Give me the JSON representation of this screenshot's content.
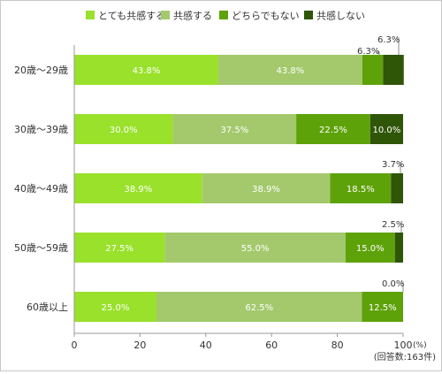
{
  "chart_data": {
    "type": "bar",
    "orientation": "horizontal",
    "stacked": true,
    "title": "",
    "xlabel": "",
    "ylabel": "",
    "x_unit": "(%)",
    "note": "(回答数:163件)",
    "xlim": [
      0,
      100
    ],
    "xticks": [
      0,
      20,
      40,
      60,
      80,
      100
    ],
    "grid": false,
    "legend_position": "top",
    "categories": [
      "20歳〜29歳",
      "30歳〜39歳",
      "40歳〜49歳",
      "50歳〜59歳",
      "60歳以上"
    ],
    "series": [
      {
        "name": "とても共感する",
        "color": "#99e12b",
        "values": [
          43.8,
          30.0,
          38.9,
          27.5,
          25.0
        ],
        "labels": [
          "43.8%",
          "30.0%",
          "38.9%",
          "27.5%",
          "25.0%"
        ]
      },
      {
        "name": "共感する",
        "color": "#a3c96c",
        "values": [
          43.8,
          37.5,
          38.9,
          55.0,
          62.5
        ],
        "labels": [
          "43.8%",
          "37.5%",
          "38.9%",
          "55.0%",
          "62.5%"
        ]
      },
      {
        "name": "どちらでもない",
        "color": "#5ea20a",
        "values": [
          6.3,
          22.5,
          18.5,
          15.0,
          12.5
        ],
        "labels": [
          "6.3%",
          "22.5%",
          "18.5%",
          "15.0%",
          "12.5%"
        ]
      },
      {
        "name": "共感しない",
        "color": "#2f5507",
        "values": [
          6.3,
          10.0,
          3.7,
          2.5,
          0.0
        ],
        "labels": [
          "6.3%",
          "10.0%",
          "3.7%",
          "2.5%",
          "0.0%"
        ]
      }
    ],
    "annotations": [
      {
        "text": "6.3%",
        "row": 0,
        "series": 2
      },
      {
        "text": "6.3%",
        "row": 0,
        "series": 3
      },
      {
        "text": "3.7%",
        "row": 2,
        "series": 3
      },
      {
        "text": "2.5%",
        "row": 3,
        "series": 3
      },
      {
        "text": "0.0%",
        "row": 4,
        "series": 3
      }
    ]
  }
}
